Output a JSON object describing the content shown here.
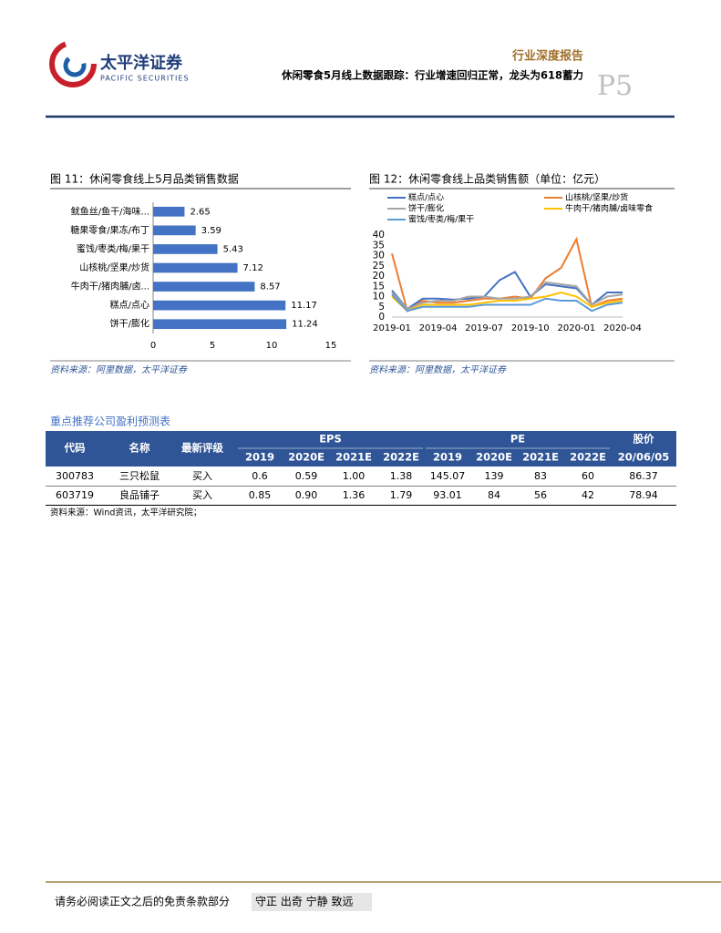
{
  "header": {
    "logo_cn": "太平洋证券",
    "logo_en": "PACIFIC SECURITIES",
    "section": "行业深度报告",
    "title": "休闲零食5月线上数据跟踪：行业增速回归正常，龙头为618蓄力",
    "page": "P5"
  },
  "chart_data": [
    {
      "type": "bar",
      "horizontal": true,
      "title": "图 11：休闲零食线上5月品类销售数据",
      "categories": [
        "鱿鱼丝/鱼干/海味...",
        "糖果零食/果冻/布丁",
        "蜜饯/枣类/梅/果干",
        "山核桃/坚果/炒货",
        "牛肉干/猪肉脯/卤...",
        "糕点/点心",
        "饼干/膨化"
      ],
      "values": [
        2.65,
        3.59,
        5.43,
        7.12,
        8.57,
        11.17,
        11.24
      ],
      "color": "#4472c4",
      "xlim": [
        0,
        15
      ],
      "xticks": [
        0,
        5,
        10,
        15
      ],
      "grid": false,
      "source": "资料来源：阿里数据，太平洋证券"
    },
    {
      "type": "line",
      "title": "图 12：休闲零食线上品类销售额（单位：亿元）",
      "categories": [
        "2019-01",
        null,
        null,
        "2019-04",
        null,
        null,
        "2019-07",
        null,
        null,
        "2019-10",
        null,
        null,
        "2020-01",
        null,
        null,
        "2020-04"
      ],
      "series": [
        {
          "name": "糕点/点心",
          "color": "#4472c4",
          "values": [
            13,
            4,
            9,
            9,
            8.5,
            9,
            10,
            18,
            22,
            10,
            16,
            15,
            14,
            6,
            12,
            12
          ]
        },
        {
          "name": "山核桃/坚果/炒货",
          "color": "#ed7d31",
          "values": [
            31,
            3,
            8,
            7,
            7,
            8,
            9,
            9,
            10,
            9,
            19,
            24,
            38,
            5,
            8,
            9
          ]
        },
        {
          "name": "饼干/膨化",
          "color": "#a5a5a5",
          "values": [
            12,
            4,
            7,
            8,
            8,
            10,
            10,
            9,
            9,
            10,
            17,
            16,
            15,
            6,
            10,
            11
          ]
        },
        {
          "name": "牛肉干/猪肉脯/卤味零食",
          "color": "#ffc000",
          "values": [
            10,
            3,
            6,
            6,
            6,
            6,
            7,
            8,
            8,
            9,
            10,
            12,
            10,
            5,
            7,
            8
          ]
        },
        {
          "name": "蜜饯/枣类/梅/果干",
          "color": "#5b9bd5",
          "values": [
            11,
            3,
            5,
            5,
            5,
            5,
            6,
            6,
            6,
            6,
            9,
            8,
            8,
            3,
            6,
            7
          ]
        }
      ],
      "ylim": [
        0,
        40
      ],
      "yticks": [
        0,
        5,
        10,
        15,
        20,
        25,
        30,
        35,
        40
      ],
      "grid": false,
      "legend": "top",
      "source": "资料来源：阿里数据，太平洋证券"
    }
  ],
  "table": {
    "title": "重点推荐公司盈利预测表",
    "columns": [
      "代码",
      "名称",
      "最新评级"
    ],
    "groups": [
      {
        "name": "EPS",
        "sub": [
          "2019",
          "2020E",
          "2021E",
          "2022E"
        ]
      },
      {
        "name": "PE",
        "sub": [
          "2019",
          "2020E",
          "2021E",
          "2022E"
        ]
      },
      {
        "name": "股价",
        "sub": [
          "20/06/05"
        ]
      }
    ],
    "rows": [
      [
        "300783",
        "三只松鼠",
        "买入",
        "0.6",
        "0.59",
        "1.00",
        "1.38",
        "145.07",
        "139",
        "83",
        "60",
        "86.37"
      ],
      [
        "603719",
        "良品铺子",
        "买入",
        "0.85",
        "0.90",
        "1.36",
        "1.79",
        "93.01",
        "84",
        "56",
        "42",
        "78.94"
      ]
    ],
    "source": "资料来源：Wind资讯，太平洋研究院；"
  },
  "footer": {
    "disclaimer": "请务必阅读正文之后的免责条款部分",
    "motto": "守正 出奇 宁静 致远"
  }
}
